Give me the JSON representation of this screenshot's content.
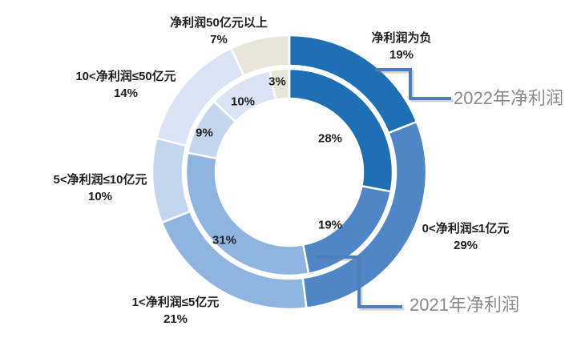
{
  "chart_data": {
    "type": "doughnut",
    "title": "",
    "legend": "none",
    "start_angle_deg": 0,
    "direction": "clockwise",
    "categories": [
      "净利润为负",
      "0<净利润≤1亿元",
      "1<净利润≤5亿元",
      "5<净利润≤10亿元",
      "10<净利润≤50亿元",
      "净利润50亿元以上"
    ],
    "series": [
      {
        "name": "2022年净利润",
        "ring": "outer",
        "values": [
          19,
          29,
          21,
          10,
          14,
          7
        ],
        "labels": [
          "19%",
          "29%",
          "21%",
          "10%",
          "14%",
          "7%"
        ]
      },
      {
        "name": "2021年净利润",
        "ring": "inner",
        "values": [
          28,
          19,
          31,
          9,
          10,
          3
        ],
        "labels": [
          "28%",
          "19%",
          "31%",
          "9%",
          "10%",
          "3%"
        ]
      }
    ],
    "colors": [
      "#1e6fb4",
      "#4f86c6",
      "#8fb4e0",
      "#c4d6ee",
      "#dae4f4",
      "#e8e6da"
    ]
  },
  "annotations": {
    "line_color": "#4d7ebf",
    "text_color": "#8a8a8a",
    "callouts": [
      {
        "label": "2022年净利润",
        "points_to": "outer ring"
      },
      {
        "label": "2021年净利润",
        "points_to": "inner ring"
      }
    ]
  },
  "background": "#ffffff"
}
